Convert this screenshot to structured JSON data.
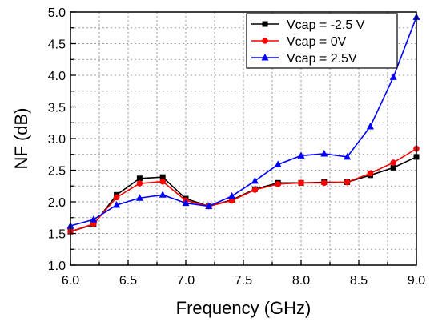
{
  "chart_data": {
    "type": "line",
    "xlabel": "Frequency (GHz)",
    "ylabel": "NF (dB)",
    "xlim": [
      6.0,
      9.0
    ],
    "ylim": [
      1.0,
      5.0
    ],
    "xticks": [
      "6.0",
      "6.5",
      "7.0",
      "7.5",
      "8.0",
      "8.5",
      "9.0"
    ],
    "yticks": [
      "1.0",
      "1.5",
      "2.0",
      "2.5",
      "3.0",
      "3.5",
      "4.0",
      "4.5",
      "5.0"
    ],
    "grid": true,
    "legend_position": "top-right",
    "x": [
      6.0,
      6.2,
      6.4,
      6.6,
      6.8,
      7.0,
      7.2,
      7.4,
      7.6,
      7.8,
      8.0,
      8.2,
      8.4,
      8.6,
      8.8,
      9.0
    ],
    "series": [
      {
        "name": "Vcap = -2.5 V",
        "color": "#000000",
        "marker": "square",
        "values": [
          1.53,
          1.64,
          2.11,
          2.37,
          2.39,
          2.05,
          1.93,
          2.03,
          2.2,
          2.3,
          2.3,
          2.31,
          2.31,
          2.42,
          2.54,
          2.71
        ]
      },
      {
        "name": "Vcap = 0V",
        "color": "#ff0000",
        "marker": "circle",
        "values": [
          1.53,
          1.65,
          2.07,
          2.29,
          2.32,
          2.02,
          1.93,
          2.02,
          2.19,
          2.28,
          2.3,
          2.3,
          2.31,
          2.45,
          2.62,
          2.84
        ]
      },
      {
        "name": "Vcap = 2.5V",
        "color": "#0000ff",
        "marker": "triangle",
        "values": [
          1.62,
          1.72,
          1.95,
          2.06,
          2.11,
          1.98,
          1.93,
          2.09,
          2.33,
          2.59,
          2.73,
          2.76,
          2.71,
          3.19,
          3.97,
          4.92
        ]
      }
    ]
  }
}
